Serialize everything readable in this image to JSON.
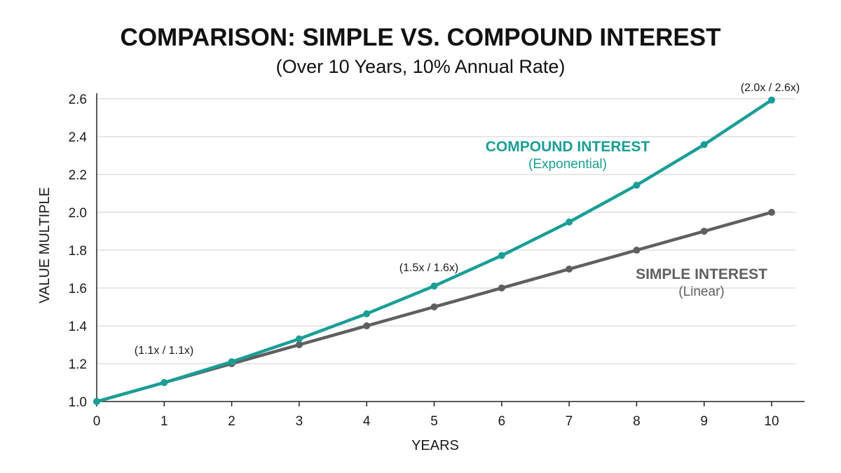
{
  "chart_data": {
    "type": "line",
    "title": "COMPARISON: SIMPLE VS. COMPOUND INTEREST",
    "subtitle": "(Over 10 Years, 10% Annual Rate)",
    "xlabel": "YEARS",
    "ylabel": "VALUE MULTIPLE",
    "x": [
      0,
      1,
      2,
      3,
      4,
      5,
      6,
      7,
      8,
      9,
      10
    ],
    "xlim": [
      0,
      10
    ],
    "ylim": [
      1.0,
      2.6
    ],
    "y_ticks": [
      "1.0",
      "1.2",
      "1.4",
      "1.6",
      "1.8",
      "2.0",
      "2.2",
      "2.4",
      "2.6"
    ],
    "x_ticks": [
      "0",
      "1",
      "2",
      "3",
      "4",
      "5",
      "6",
      "7",
      "8",
      "9",
      "10"
    ],
    "grid": true,
    "series": [
      {
        "name": "COMPOUND INTEREST",
        "subname": "(Exponential)",
        "color": "#1a9e96",
        "values": [
          1.0,
          1.1,
          1.21,
          1.331,
          1.4641,
          1.6105,
          1.7716,
          1.9487,
          2.1436,
          2.3579,
          2.5937
        ]
      },
      {
        "name": "SIMPLE INTEREST",
        "subname": "(Linear)",
        "color": "#5f5f5f",
        "values": [
          1.0,
          1.1,
          1.2,
          1.3,
          1.4,
          1.5,
          1.6,
          1.7,
          1.8,
          1.9,
          2.0
        ]
      }
    ],
    "annotations": [
      {
        "text": "(1.1x / 1.1x)",
        "x": 1
      },
      {
        "text": "(1.5x / 1.6x)",
        "x": 5
      },
      {
        "text": "(2.0x / 2.6x)",
        "x": 10
      }
    ]
  }
}
